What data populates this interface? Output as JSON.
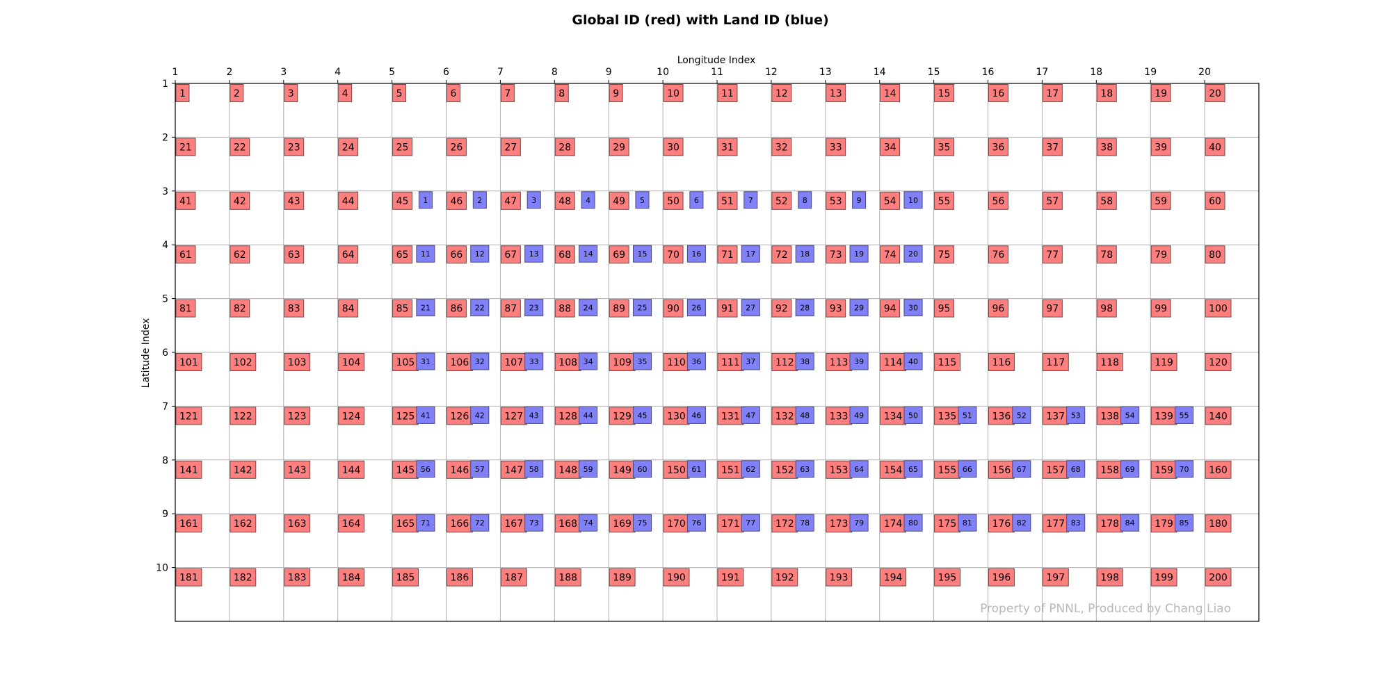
{
  "chart_data": {
    "type": "table",
    "title": "Global ID (red) with Land ID (blue)",
    "xlabel": "Longitude Index",
    "ylabel": "Latitude Index",
    "x_ticks": [
      "1",
      "2",
      "3",
      "4",
      "5",
      "6",
      "7",
      "8",
      "9",
      "10",
      "11",
      "12",
      "13",
      "14",
      "15",
      "16",
      "17",
      "18",
      "19",
      "20"
    ],
    "y_ticks": [
      "1",
      "2",
      "3",
      "4",
      "5",
      "6",
      "7",
      "8",
      "9",
      "10"
    ],
    "ncols": 20,
    "nrows": 10,
    "grid": true,
    "global_id_color": "#ff7f7f",
    "land_id_color": "#8080f8",
    "land_ids": [
      {
        "row": 3,
        "start_col": 5,
        "end_col": 14,
        "first_id": 1
      },
      {
        "row": 4,
        "start_col": 5,
        "end_col": 14,
        "first_id": 11
      },
      {
        "row": 5,
        "start_col": 5,
        "end_col": 14,
        "first_id": 21
      },
      {
        "row": 6,
        "start_col": 5,
        "end_col": 14,
        "first_id": 31
      },
      {
        "row": 7,
        "start_col": 5,
        "end_col": 19,
        "first_id": 41
      },
      {
        "row": 8,
        "start_col": 5,
        "end_col": 19,
        "first_id": 56
      },
      {
        "row": 9,
        "start_col": 5,
        "end_col": 19,
        "first_id": 71
      }
    ],
    "watermark": "Property of PNNL, Produced by Chang Liao"
  }
}
